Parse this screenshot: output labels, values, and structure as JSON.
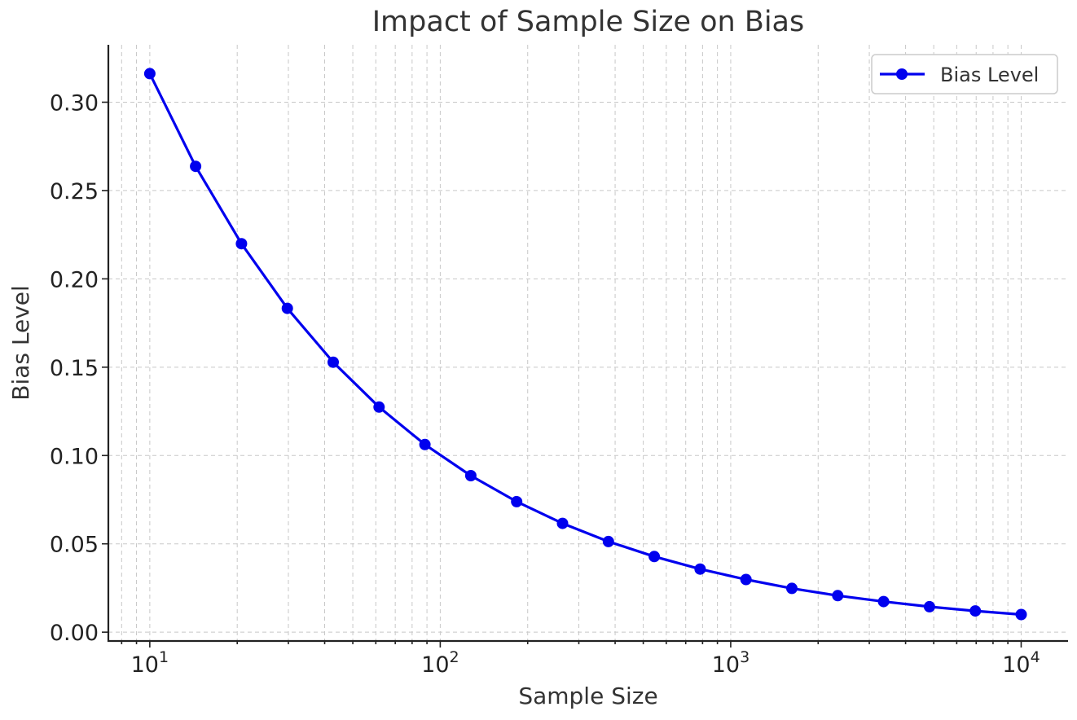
{
  "chart_data": {
    "type": "line",
    "title": "Impact of Sample Size on Bias",
    "xlabel": "Sample Size",
    "ylabel": "Bias Level",
    "xscale": "log",
    "xlim": [
      7.2,
      14500
    ],
    "ylim": [
      -0.005,
      0.3325
    ],
    "grid": true,
    "legend_position": "top-right",
    "x_ticks": [
      {
        "value": 10,
        "base": "10",
        "exp": "1"
      },
      {
        "value": 100,
        "base": "10",
        "exp": "2"
      },
      {
        "value": 1000,
        "base": "10",
        "exp": "3"
      },
      {
        "value": 10000,
        "base": "10",
        "exp": "4"
      }
    ],
    "y_ticks": [
      {
        "value": 0.0,
        "label": "0.00"
      },
      {
        "value": 0.05,
        "label": "0.05"
      },
      {
        "value": 0.1,
        "label": "0.10"
      },
      {
        "value": 0.15,
        "label": "0.15"
      },
      {
        "value": 0.2,
        "label": "0.20"
      },
      {
        "value": 0.25,
        "label": "0.25"
      },
      {
        "value": 0.3,
        "label": "0.30"
      }
    ],
    "series": [
      {
        "name": "Bias Level",
        "color": "#0000ee",
        "x": [
          10,
          14.38,
          20.69,
          29.76,
          42.81,
          61.58,
          88.59,
          127.4,
          183.3,
          263.7,
          379.3,
          545.6,
          784.8,
          1129,
          1624,
          2336,
          3360,
          4833,
          6952,
          10000
        ],
        "values": [
          0.3162,
          0.2637,
          0.2199,
          0.1833,
          0.1528,
          0.1274,
          0.1062,
          0.0886,
          0.0739,
          0.0616,
          0.0513,
          0.0428,
          0.0357,
          0.0298,
          0.0248,
          0.0207,
          0.0173,
          0.0144,
          0.012,
          0.01
        ]
      }
    ]
  }
}
